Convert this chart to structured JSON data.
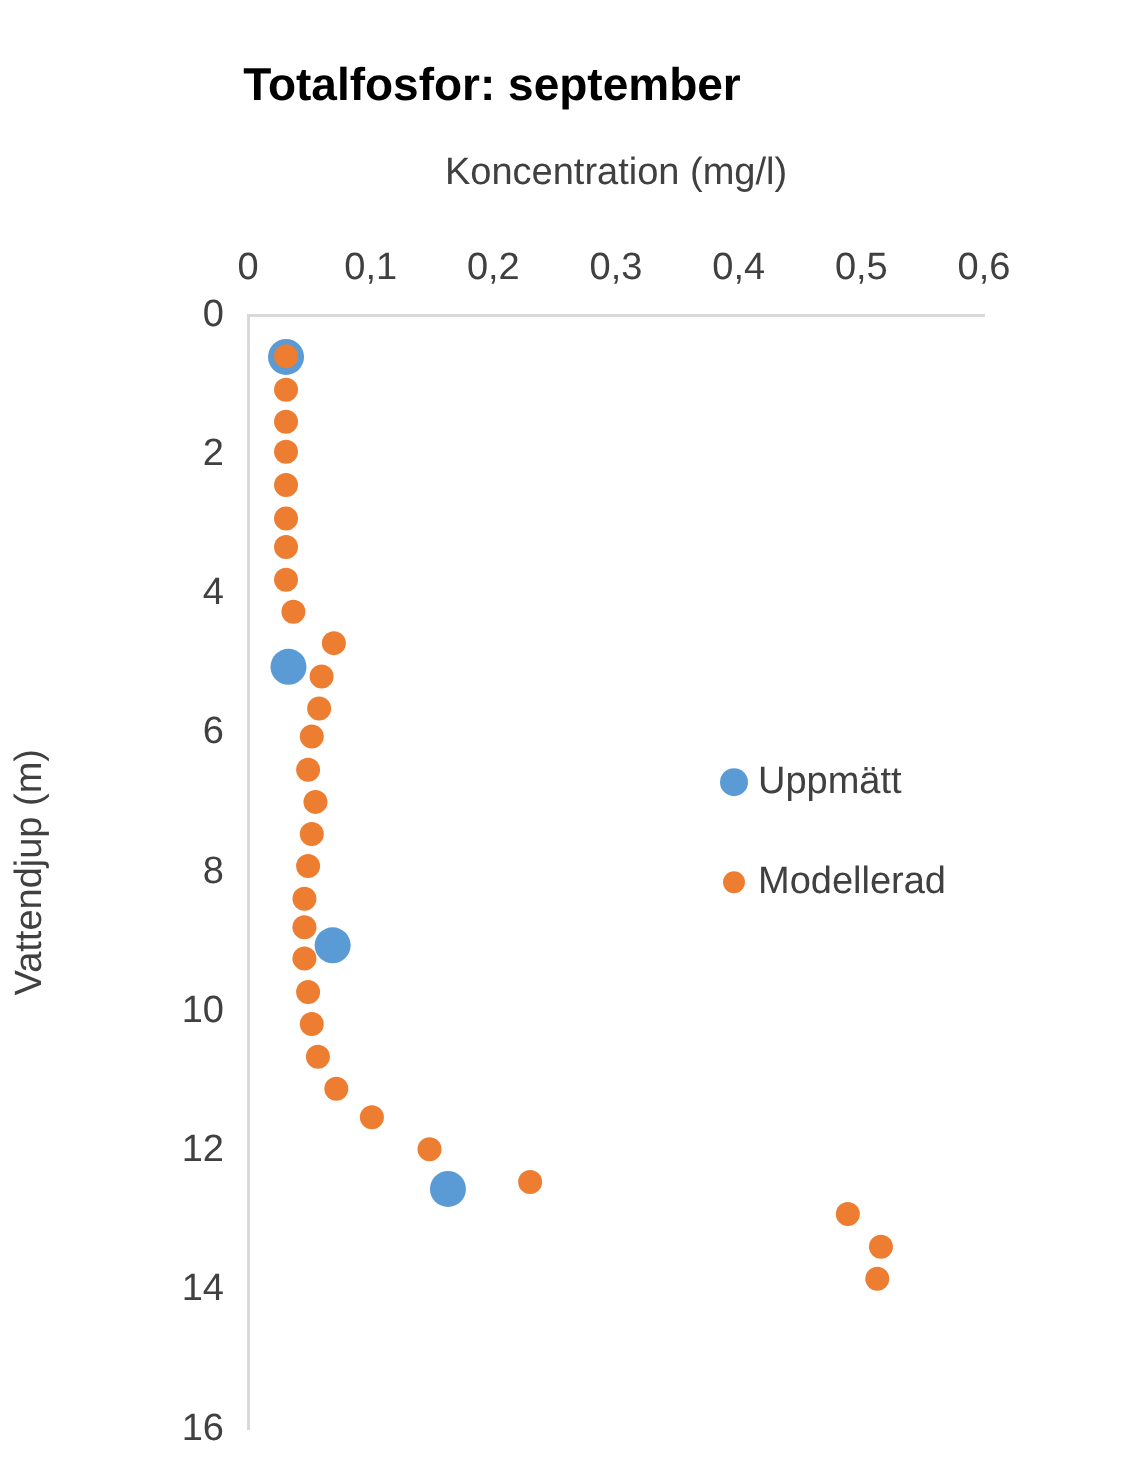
{
  "chart_data": {
    "type": "scatter",
    "title": "Totalfosfor: september",
    "xlabel": "Koncentration (mg/l)",
    "ylabel": "Vattendjup (m)",
    "xlim": [
      0,
      0.6
    ],
    "xticks": [
      0,
      {
        "value": 0.1,
        "label": "0,1"
      },
      {
        "value": 0.2,
        "label": "0,2"
      },
      {
        "value": 0.3,
        "label": "0,3"
      },
      {
        "value": 0.4,
        "label": "0,4"
      },
      {
        "value": 0.5,
        "label": "0,5"
      },
      {
        "value": 0.6,
        "label": "0,6"
      }
    ],
    "ylim": [
      16,
      0
    ],
    "yticks": [
      0,
      2,
      4,
      6,
      8,
      10,
      12,
      14,
      16
    ],
    "grid": false,
    "legend": "right",
    "marker": "circle",
    "series": [
      {
        "name": "Uppmätt",
        "color": "#5b9bd5",
        "x": [
          0.031,
          0.033,
          0.069,
          0.163
        ],
        "values": [
          0.6,
          5.05,
          9.05,
          12.55
        ]
      },
      {
        "name": "Modellerad",
        "color": "#ed7d31",
        "x": [
          0.031,
          0.031,
          0.031,
          0.031,
          0.031,
          0.031,
          0.031,
          0.031,
          0.037,
          0.07,
          0.06,
          0.058,
          0.052,
          0.049,
          0.055,
          0.052,
          0.049,
          0.046,
          0.046,
          0.046,
          0.049,
          0.052,
          0.057,
          0.072,
          0.101,
          0.148,
          0.23,
          0.489,
          0.516,
          0.513
        ],
        "values": [
          0.59,
          1.07,
          1.53,
          1.96,
          2.44,
          2.92,
          3.33,
          3.8,
          4.26,
          4.71,
          5.19,
          5.65,
          6.05,
          6.53,
          6.99,
          7.45,
          7.91,
          8.38,
          8.79,
          9.24,
          9.72,
          10.18,
          10.65,
          11.11,
          11.52,
          11.98,
          12.45,
          12.91,
          13.38,
          13.84
        ]
      }
    ]
  }
}
